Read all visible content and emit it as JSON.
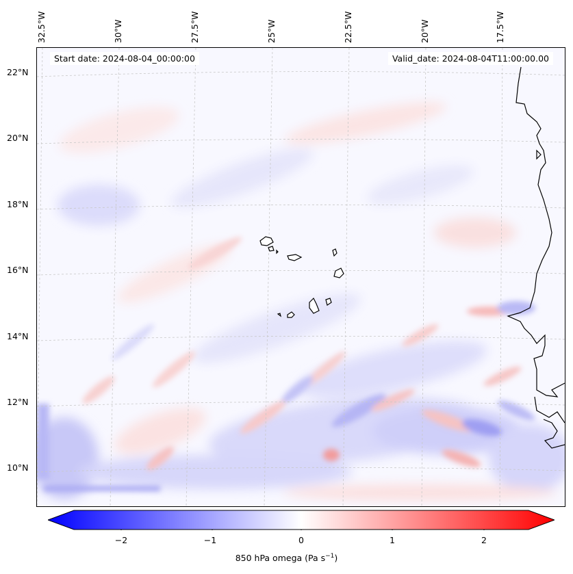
{
  "header": {
    "start_date": "Start date: 2024-08-04_00:00:00",
    "valid_date": "Valid_date: 2024-08-04T11:00:00.00"
  },
  "map": {
    "longitude_labels": [
      "32.5°W",
      "30°W",
      "27.5°W",
      "25°W",
      "22.5°W",
      "20°W",
      "17.5°W"
    ],
    "latitude_labels": [
      "22°N",
      "20°N",
      "18°N",
      "16°N",
      "14°N",
      "12°N",
      "10°N"
    ],
    "features": [
      "Cape Verde islands",
      "West African coastline",
      "850 hPa omega field"
    ],
    "colors": {
      "negative": "#0000ff",
      "neutral": "#ffffff",
      "positive": "#ff0000",
      "coast": "#000000",
      "grid": "#c8c8c8"
    }
  },
  "colorbar": {
    "ticks": [
      "−2",
      "−1",
      "0",
      "1",
      "2"
    ],
    "tick_values": [
      -2,
      -1,
      0,
      1,
      2
    ],
    "range": [
      -2.6,
      2.6
    ],
    "label": "850 hPa omega (Pa s",
    "label_sup": "−1",
    "label_end": ")",
    "colormap": "bwr"
  }
}
